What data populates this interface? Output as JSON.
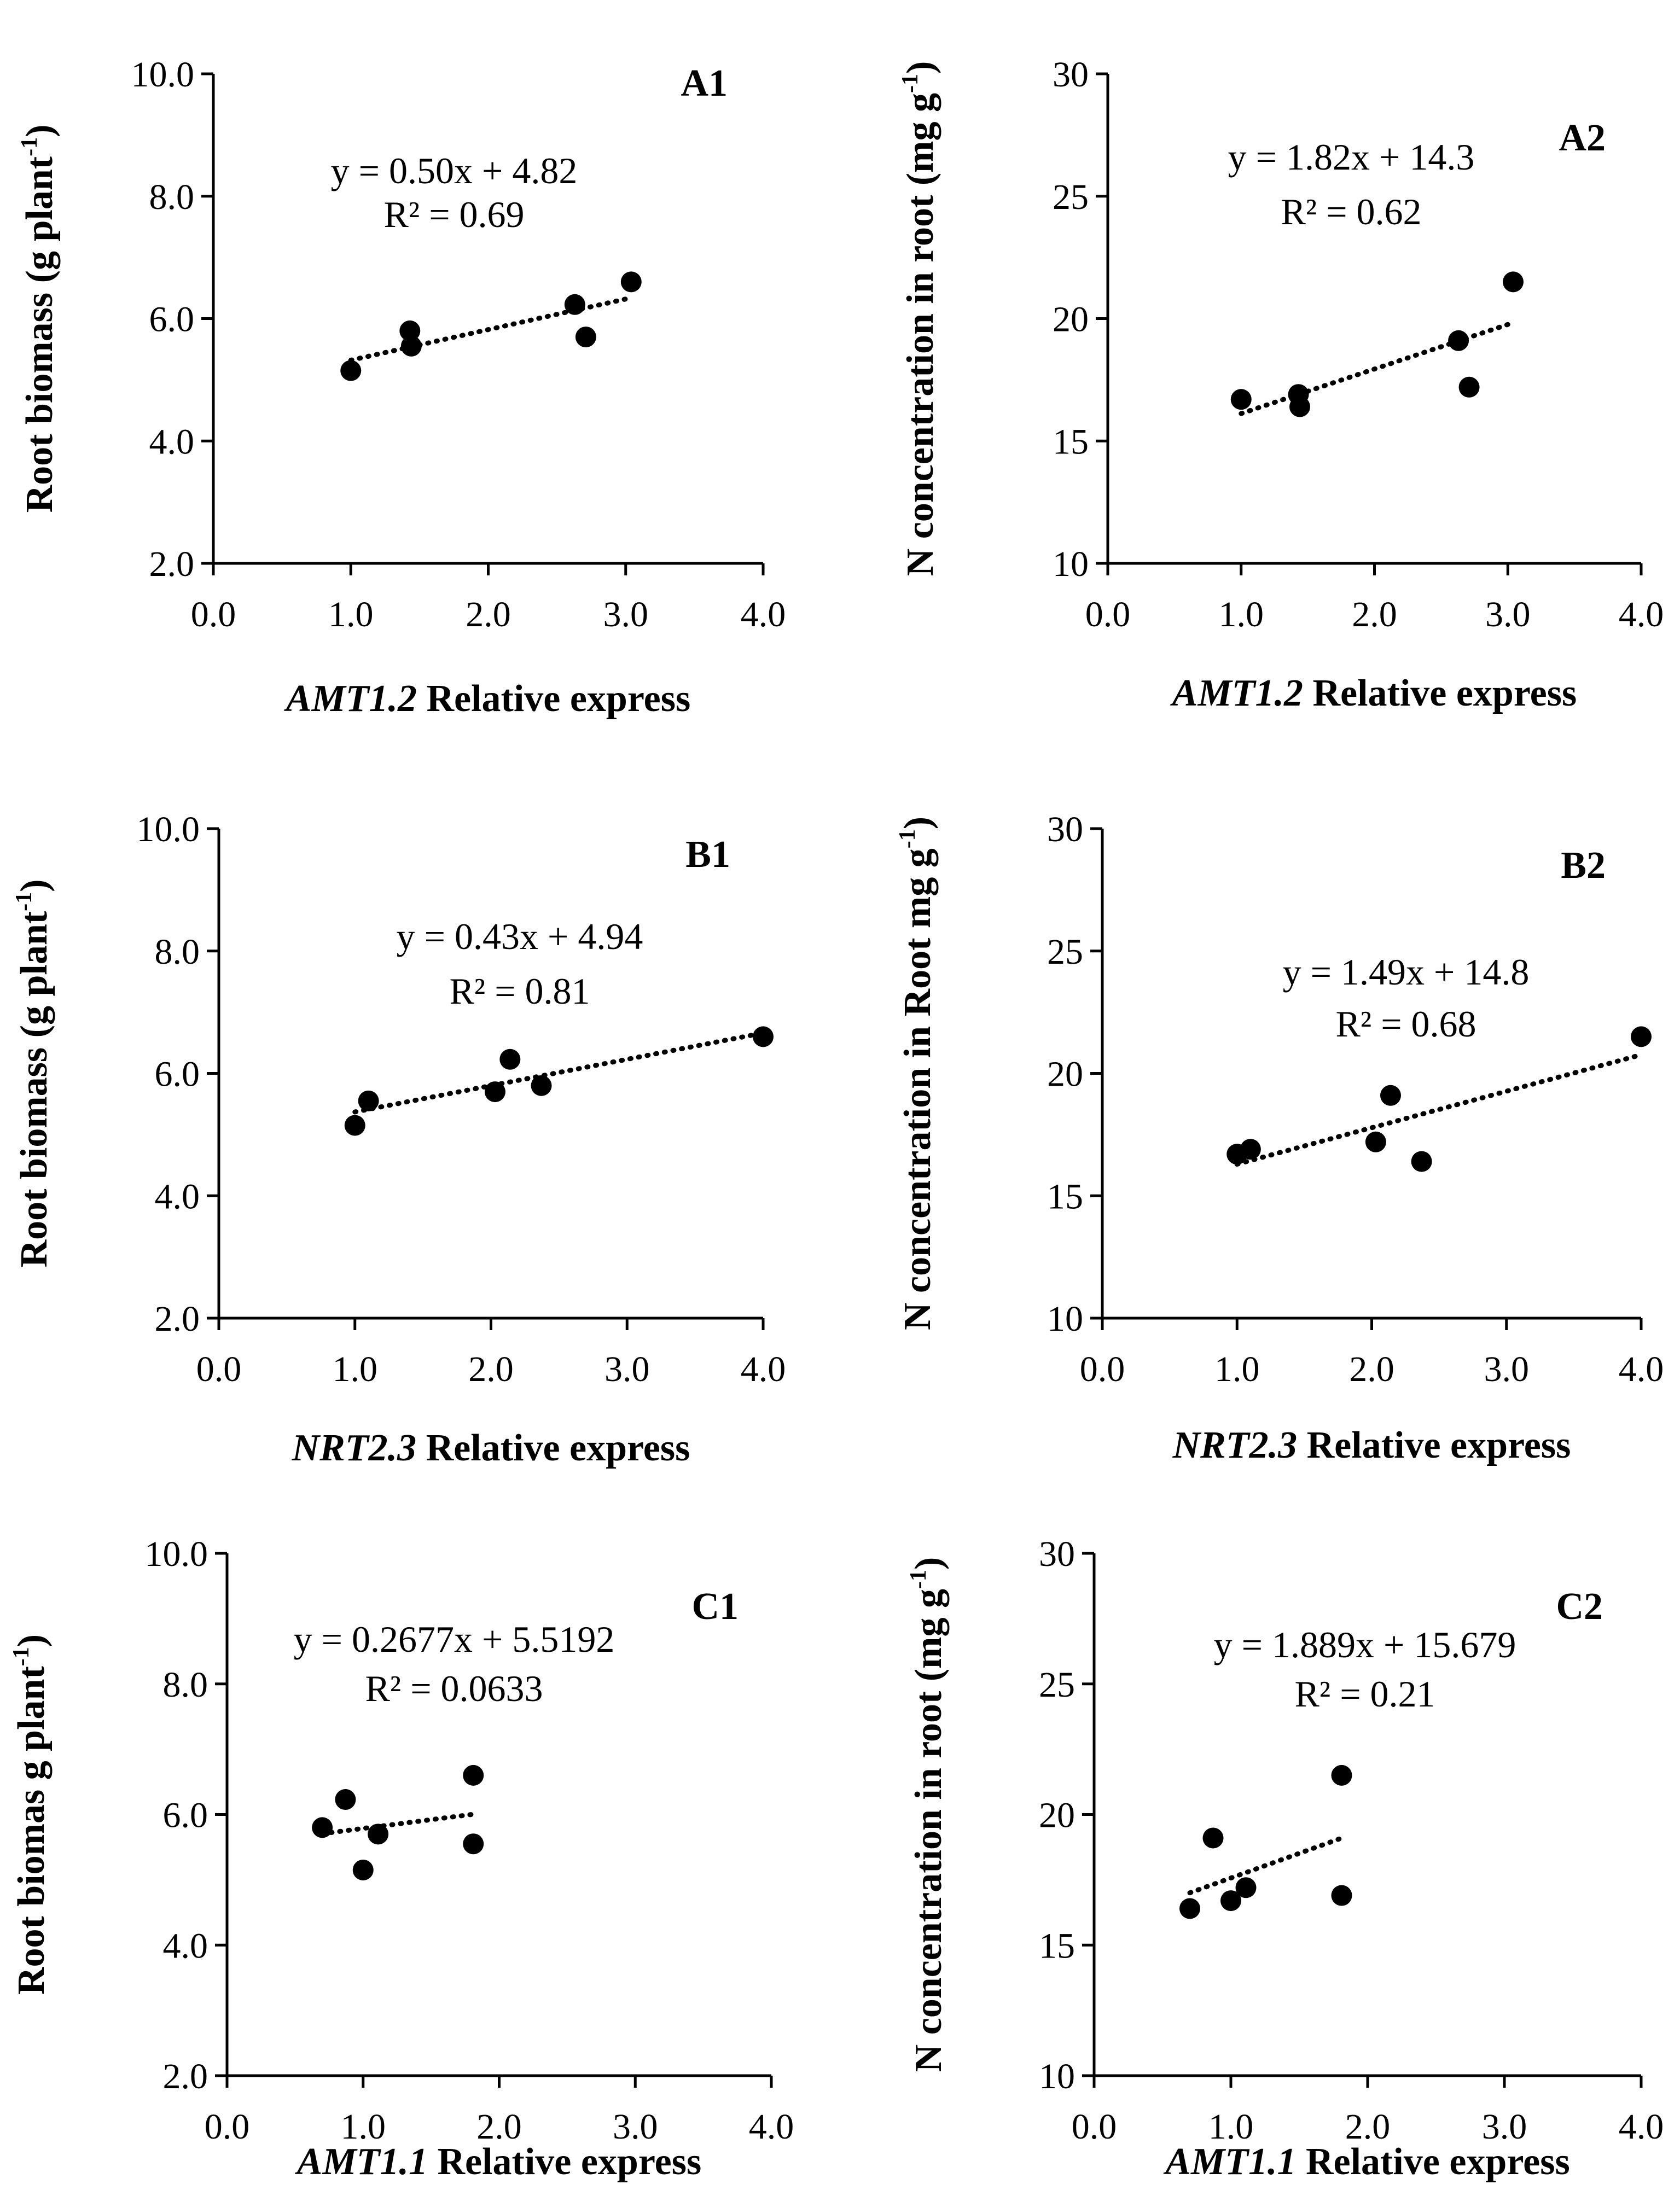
{
  "chart_data": [
    {
      "id": "A1",
      "type": "scatter",
      "panel_label": "A1",
      "equation": "y = 0.50x + 4.82",
      "r_squared": "R² = 0.69",
      "xlabel": {
        "gene": "AMT1.2",
        "rest": " Relative  express"
      },
      "ylabel": {
        "text": "Root biomass (g plant",
        "sup": "-1",
        "tail": ")"
      },
      "xlim": [
        0,
        4
      ],
      "ylim": [
        2,
        10
      ],
      "xticks": [
        "0.0",
        "1.0",
        "2.0",
        "3.0",
        "4.0"
      ],
      "yticks": [
        "2.0",
        "4.0",
        "6.0",
        "8.0",
        "10.0"
      ],
      "points": [
        [
          1.0,
          5.15
        ],
        [
          1.43,
          5.8
        ],
        [
          1.44,
          5.55
        ],
        [
          2.63,
          6.23
        ],
        [
          2.71,
          5.7
        ],
        [
          3.04,
          6.6
        ]
      ],
      "trendline": {
        "slope": 0.5,
        "intercept": 4.82,
        "x": [
          1.0,
          3.04
        ],
        "style": "dotted"
      }
    },
    {
      "id": "A2",
      "type": "scatter",
      "panel_label": "A2",
      "equation": "y = 1.82x + 14.3",
      "r_squared": "R² = 0.62",
      "xlabel": {
        "gene": "AMT1.2",
        "rest": " Relative  express"
      },
      "ylabel": {
        "text": "N concentration in root  (mg g",
        "sup": "-1",
        "tail": ")"
      },
      "xlim": [
        0,
        4
      ],
      "ylim": [
        10,
        30
      ],
      "xticks": [
        "0.0",
        "1.0",
        "2.0",
        "3.0",
        "4.0"
      ],
      "yticks": [
        "10",
        "15",
        "20",
        "25",
        "30"
      ],
      "points": [
        [
          1.0,
          16.7
        ],
        [
          1.43,
          16.9
        ],
        [
          1.44,
          16.4
        ],
        [
          2.63,
          19.1
        ],
        [
          2.71,
          17.2
        ],
        [
          3.04,
          21.5
        ]
      ],
      "trendline": {
        "slope": 1.82,
        "intercept": 14.3,
        "x": [
          1.0,
          3.04
        ],
        "style": "dotted"
      }
    },
    {
      "id": "B1",
      "type": "scatter",
      "panel_label": "B1",
      "equation": "y = 0.43x + 4.94",
      "r_squared": "R² = 0.81",
      "xlabel": {
        "gene": "NRT2.3",
        "rest": " Relative express"
      },
      "ylabel": {
        "text": "Root biomass (g plant",
        "sup": "-1",
        "tail": ")"
      },
      "xlim": [
        0,
        4
      ],
      "ylim": [
        2,
        10
      ],
      "xticks": [
        "0.0",
        "1.0",
        "2.0",
        "3.0",
        "4.0"
      ],
      "yticks": [
        "2.0",
        "4.0",
        "6.0",
        "8.0",
        "10.0"
      ],
      "points": [
        [
          1.0,
          5.15
        ],
        [
          1.1,
          5.55
        ],
        [
          2.03,
          5.7
        ],
        [
          2.14,
          6.23
        ],
        [
          2.37,
          5.8
        ],
        [
          4.0,
          6.6
        ]
      ],
      "trendline": {
        "slope": 0.43,
        "intercept": 4.94,
        "x": [
          1.0,
          4.0
        ],
        "style": "dotted"
      }
    },
    {
      "id": "B2",
      "type": "scatter",
      "panel_label": "B2",
      "equation": "y = 1.49x + 14.8",
      "r_squared": "R² = 0.68",
      "xlabel": {
        "gene": "NRT2.3",
        "rest": " Relative express"
      },
      "ylabel": {
        "text": "N concentration in Root mg g",
        "sup": "-1",
        "tail": ")"
      },
      "xlim": [
        0,
        4
      ],
      "ylim": [
        10,
        30
      ],
      "xticks": [
        "0.0",
        "1.0",
        "2.0",
        "3.0",
        "4.0"
      ],
      "yticks": [
        "10",
        "15",
        "20",
        "25",
        "30"
      ],
      "points": [
        [
          1.0,
          16.7
        ],
        [
          1.1,
          16.9
        ],
        [
          2.03,
          17.2
        ],
        [
          2.14,
          19.1
        ],
        [
          2.37,
          16.4
        ],
        [
          4.0,
          21.5
        ]
      ],
      "trendline": {
        "slope": 1.49,
        "intercept": 14.8,
        "x": [
          1.0,
          4.0
        ],
        "style": "dotted"
      }
    },
    {
      "id": "C1",
      "type": "scatter",
      "panel_label": "C1",
      "equation": "y = 0.2677x + 5.5192",
      "r_squared": "R² = 0.0633",
      "xlabel": {
        "gene": "AMT1.1",
        "rest": " Relative  express"
      },
      "ylabel": {
        "text": "Root biomas g plant",
        "sup": "-1",
        "tail": ")"
      },
      "xlim": [
        0,
        4
      ],
      "ylim": [
        2,
        10
      ],
      "xticks": [
        "0.0",
        "1.0",
        "2.0",
        "3.0",
        "4.0"
      ],
      "yticks": [
        "2.0",
        "4.0",
        "6.0",
        "8.0",
        "10.0"
      ],
      "points": [
        [
          0.7,
          5.8
        ],
        [
          0.87,
          6.23
        ],
        [
          1.0,
          5.15
        ],
        [
          1.11,
          5.7
        ],
        [
          1.81,
          6.6
        ],
        [
          1.81,
          5.55
        ]
      ],
      "trendline": {
        "slope": 0.2677,
        "intercept": 5.5192,
        "x": [
          0.7,
          1.81
        ],
        "style": "dotted"
      }
    },
    {
      "id": "C2",
      "type": "scatter",
      "panel_label": "C2",
      "equation": "y = 1.889x + 15.679",
      "r_squared": "R² = 0.21",
      "xlabel": {
        "gene": "AMT1.1",
        "rest": " Relative  express"
      },
      "ylabel": {
        "text": "N concentration in root  (mg g",
        "sup": "-1",
        "tail": ")"
      },
      "xlim": [
        0,
        4
      ],
      "ylim": [
        10,
        30
      ],
      "xticks": [
        "0.0",
        "1.0",
        "2.0",
        "3.0",
        "4.0"
      ],
      "yticks": [
        "10",
        "15",
        "20",
        "25",
        "30"
      ],
      "points": [
        [
          0.7,
          16.4
        ],
        [
          0.87,
          19.1
        ],
        [
          1.0,
          16.7
        ],
        [
          1.11,
          17.2
        ],
        [
          1.81,
          21.5
        ],
        [
          1.81,
          16.9
        ]
      ],
      "trendline": {
        "slope": 1.889,
        "intercept": 15.679,
        "x": [
          0.7,
          1.81
        ],
        "style": "dotted"
      }
    }
  ]
}
